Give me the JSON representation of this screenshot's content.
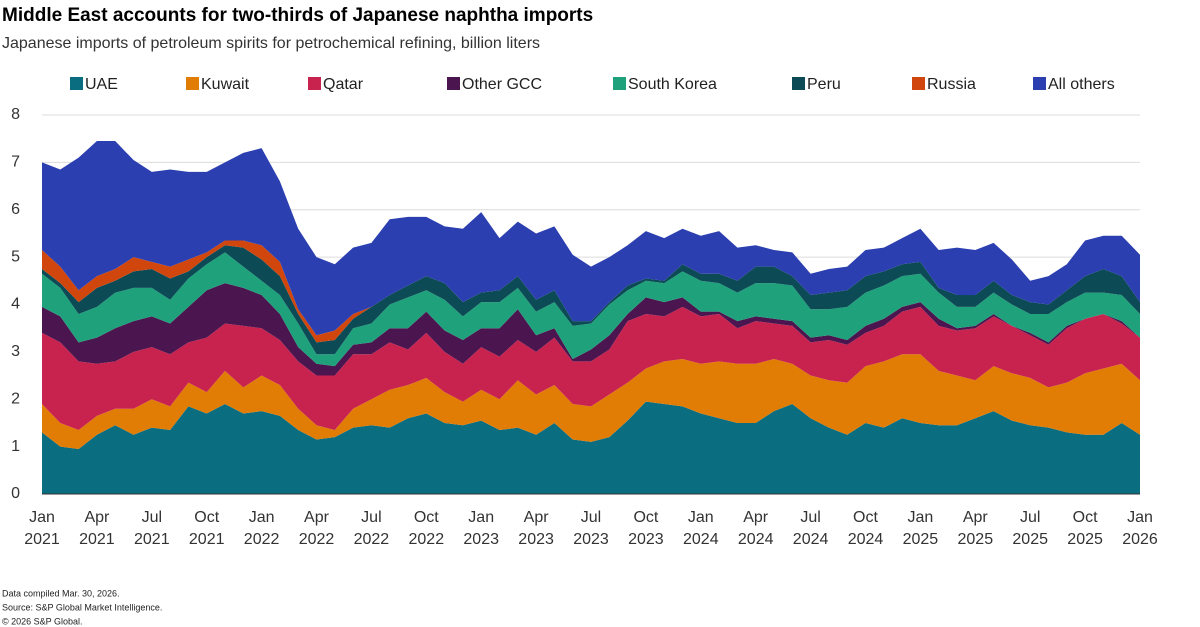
{
  "chart_data": {
    "type": "stacked_area",
    "title": "Middle East accounts for two-thirds of Japanese naphtha imports",
    "subtitle": "Japanese imports of petroleum spirits for petrochemical refining, billion liters",
    "notes": [
      "Data compiled Mar. 30, 2026.",
      "Source: S&P Global Market Intelligence.",
      "© 2026 S&P Global."
    ],
    "categories": [
      "Jan 2021",
      null,
      null,
      "Apr 2021",
      null,
      null,
      "Jul 2021",
      null,
      null,
      "Oct 2021",
      null,
      null,
      "Jan 2022",
      null,
      null,
      "Apr 2022",
      null,
      null,
      "Jul 2022",
      null,
      null,
      "Oct 2022",
      null,
      null,
      "Jan 2023",
      null,
      null,
      "Apr 2023",
      null,
      null,
      "Jul 2023",
      null,
      null,
      "Oct 2023",
      null,
      null,
      "Jan 2024",
      null,
      null,
      "Apr 2024",
      null,
      null,
      "Jul 2024",
      null,
      null,
      "Oct 2024",
      null,
      null,
      "Jan 2025",
      null,
      null,
      "Apr 2025",
      null,
      null,
      "Jul 2025",
      null,
      null,
      "Oct 2025",
      null,
      null,
      "Jan 2026"
    ],
    "ylim": [
      0,
      8
    ],
    "yticks": [
      0,
      1,
      2,
      3,
      4,
      5,
      6,
      7,
      8
    ],
    "grid": true,
    "series": [
      {
        "name": "UAE",
        "color": "#0b6d80",
        "values": [
          1.3,
          1.0,
          0.95,
          1.25,
          1.45,
          1.25,
          1.4,
          1.35,
          1.85,
          1.7,
          1.9,
          1.7,
          1.75,
          1.65,
          1.35,
          1.15,
          1.2,
          1.4,
          1.45,
          1.4,
          1.6,
          1.7,
          1.5,
          1.45,
          1.55,
          1.35,
          1.4,
          1.25,
          1.5,
          1.15,
          1.1,
          1.2,
          1.55,
          1.95,
          1.9,
          1.85,
          1.7,
          1.6,
          1.5,
          1.5,
          1.75,
          1.9,
          1.6,
          1.4,
          1.25,
          1.5,
          1.4,
          1.6,
          1.5,
          1.45,
          1.45,
          1.6,
          1.75,
          1.55,
          1.45,
          1.4,
          1.3,
          1.25,
          1.25,
          1.5,
          1.25
        ]
      },
      {
        "name": "Kuwait",
        "color": "#e17c05",
        "values": [
          0.6,
          0.5,
          0.4,
          0.4,
          0.35,
          0.55,
          0.6,
          0.5,
          0.5,
          0.45,
          0.7,
          0.55,
          0.75,
          0.65,
          0.45,
          0.3,
          0.15,
          0.4,
          0.55,
          0.8,
          0.7,
          0.75,
          0.65,
          0.5,
          0.65,
          0.65,
          1.0,
          0.85,
          0.8,
          0.75,
          0.75,
          0.9,
          0.8,
          0.7,
          0.9,
          1.0,
          1.05,
          1.2,
          1.25,
          1.25,
          1.1,
          0.85,
          0.9,
          1.0,
          1.1,
          1.2,
          1.4,
          1.35,
          1.45,
          1.15,
          1.05,
          0.8,
          0.95,
          1.0,
          1.0,
          0.85,
          1.05,
          1.3,
          1.4,
          1.25,
          1.15
        ]
      },
      {
        "name": "Qatar",
        "color": "#c8234f",
        "values": [
          1.5,
          1.7,
          1.45,
          1.1,
          1.0,
          1.2,
          1.1,
          1.1,
          0.85,
          1.15,
          1.0,
          1.3,
          1.0,
          0.95,
          1.0,
          1.05,
          1.15,
          1.15,
          0.95,
          1.0,
          0.75,
          0.95,
          0.85,
          0.8,
          0.9,
          0.9,
          0.85,
          0.9,
          1.0,
          0.9,
          0.95,
          0.95,
          1.3,
          1.15,
          0.95,
          1.1,
          1.0,
          1.0,
          0.75,
          0.9,
          0.75,
          0.8,
          0.7,
          0.85,
          0.8,
          0.7,
          0.75,
          0.9,
          1.0,
          0.95,
          0.95,
          1.1,
          1.05,
          1.0,
          0.9,
          0.9,
          1.15,
          1.15,
          1.15,
          0.85,
          0.9
        ]
      },
      {
        "name": "Other GCC",
        "color": "#4b1650",
        "values": [
          0.55,
          0.55,
          0.4,
          0.55,
          0.7,
          0.65,
          0.65,
          0.65,
          0.75,
          1.0,
          0.85,
          0.8,
          0.7,
          0.55,
          0.3,
          0.25,
          0.2,
          0.2,
          0.25,
          0.3,
          0.45,
          0.45,
          0.45,
          0.5,
          0.4,
          0.6,
          0.65,
          0.35,
          0.2,
          0.05,
          0.25,
          0.3,
          0.15,
          0.35,
          0.3,
          0.2,
          0.1,
          0.05,
          0.15,
          0.1,
          0.1,
          0.1,
          0.1,
          0.1,
          0.1,
          0.15,
          0.15,
          0.1,
          0.1,
          0.15,
          0.05,
          0.05,
          0.05,
          0,
          0.05,
          0.05,
          0.05,
          0,
          0,
          0.05,
          0
        ]
      },
      {
        "name": "South Korea",
        "color": "#1fa27c",
        "values": [
          0.7,
          0.6,
          0.6,
          0.65,
          0.75,
          0.7,
          0.6,
          0.5,
          0.6,
          0.55,
          0.65,
          0.45,
          0.3,
          0.4,
          0.5,
          0.2,
          0.25,
          0.35,
          0.4,
          0.5,
          0.65,
          0.45,
          0.65,
          0.5,
          0.55,
          0.55,
          0.45,
          0.5,
          0.55,
          0.7,
          0.55,
          0.65,
          0.5,
          0.35,
          0.4,
          0.55,
          0.65,
          0.6,
          0.6,
          0.7,
          0.75,
          0.75,
          0.6,
          0.55,
          0.7,
          0.7,
          0.7,
          0.65,
          0.6,
          0.55,
          0.45,
          0.4,
          0.45,
          0.45,
          0.4,
          0.6,
          0.5,
          0.55,
          0.45,
          0.55,
          0.5
        ]
      },
      {
        "name": "Peru",
        "color": "#0c4a56",
        "values": [
          0.1,
          0.1,
          0.25,
          0.4,
          0.25,
          0.35,
          0.4,
          0.45,
          0.15,
          0.15,
          0.15,
          0.4,
          0.45,
          0.4,
          0.2,
          0.25,
          0.3,
          0.2,
          0.35,
          0.2,
          0.25,
          0.3,
          0.35,
          0.3,
          0.2,
          0.25,
          0.25,
          0.25,
          0.25,
          0.1,
          0.05,
          0.05,
          0.1,
          0.05,
          0.05,
          0.15,
          0.15,
          0.2,
          0.25,
          0.35,
          0.35,
          0.2,
          0.3,
          0.35,
          0.35,
          0.35,
          0.3,
          0.25,
          0.25,
          0.1,
          0.25,
          0.25,
          0.25,
          0.2,
          0.25,
          0.2,
          0.25,
          0.35,
          0.5,
          0.4,
          0.25
        ]
      },
      {
        "name": "Russia",
        "color": "#d0460c",
        "values": [
          0.4,
          0.35,
          0.25,
          0.25,
          0.25,
          0.3,
          0.15,
          0.25,
          0.25,
          0.1,
          0.1,
          0.15,
          0.3,
          0.3,
          0.1,
          0.15,
          0.2,
          0.1,
          0,
          0,
          0,
          0,
          0,
          0,
          0,
          0,
          0,
          0,
          0,
          0,
          0,
          0,
          0,
          0,
          0,
          0,
          0,
          0,
          0,
          0,
          0,
          0,
          0,
          0,
          0,
          0,
          0,
          0,
          0,
          0,
          0,
          0,
          0,
          0,
          0,
          0,
          0,
          0,
          0,
          0,
          0
        ]
      },
      {
        "name": "All others",
        "color": "#2b3fb0",
        "values": [
          1.85,
          2.05,
          2.8,
          2.85,
          2.7,
          2.05,
          1.9,
          2.05,
          1.85,
          1.7,
          1.65,
          1.85,
          2.05,
          1.7,
          1.7,
          1.65,
          1.4,
          1.4,
          1.35,
          1.6,
          1.45,
          1.25,
          1.2,
          1.55,
          1.7,
          1.1,
          1.15,
          1.4,
          1.35,
          1.4,
          1.15,
          0.95,
          0.85,
          1.0,
          0.9,
          0.75,
          0.8,
          0.9,
          0.7,
          0.45,
          0.35,
          0.5,
          0.45,
          0.5,
          0.5,
          0.55,
          0.5,
          0.55,
          0.7,
          0.8,
          1.0,
          0.95,
          0.8,
          0.75,
          0.45,
          0.6,
          0.55,
          0.75,
          0.7,
          0.85,
          1.0
        ]
      }
    ]
  }
}
